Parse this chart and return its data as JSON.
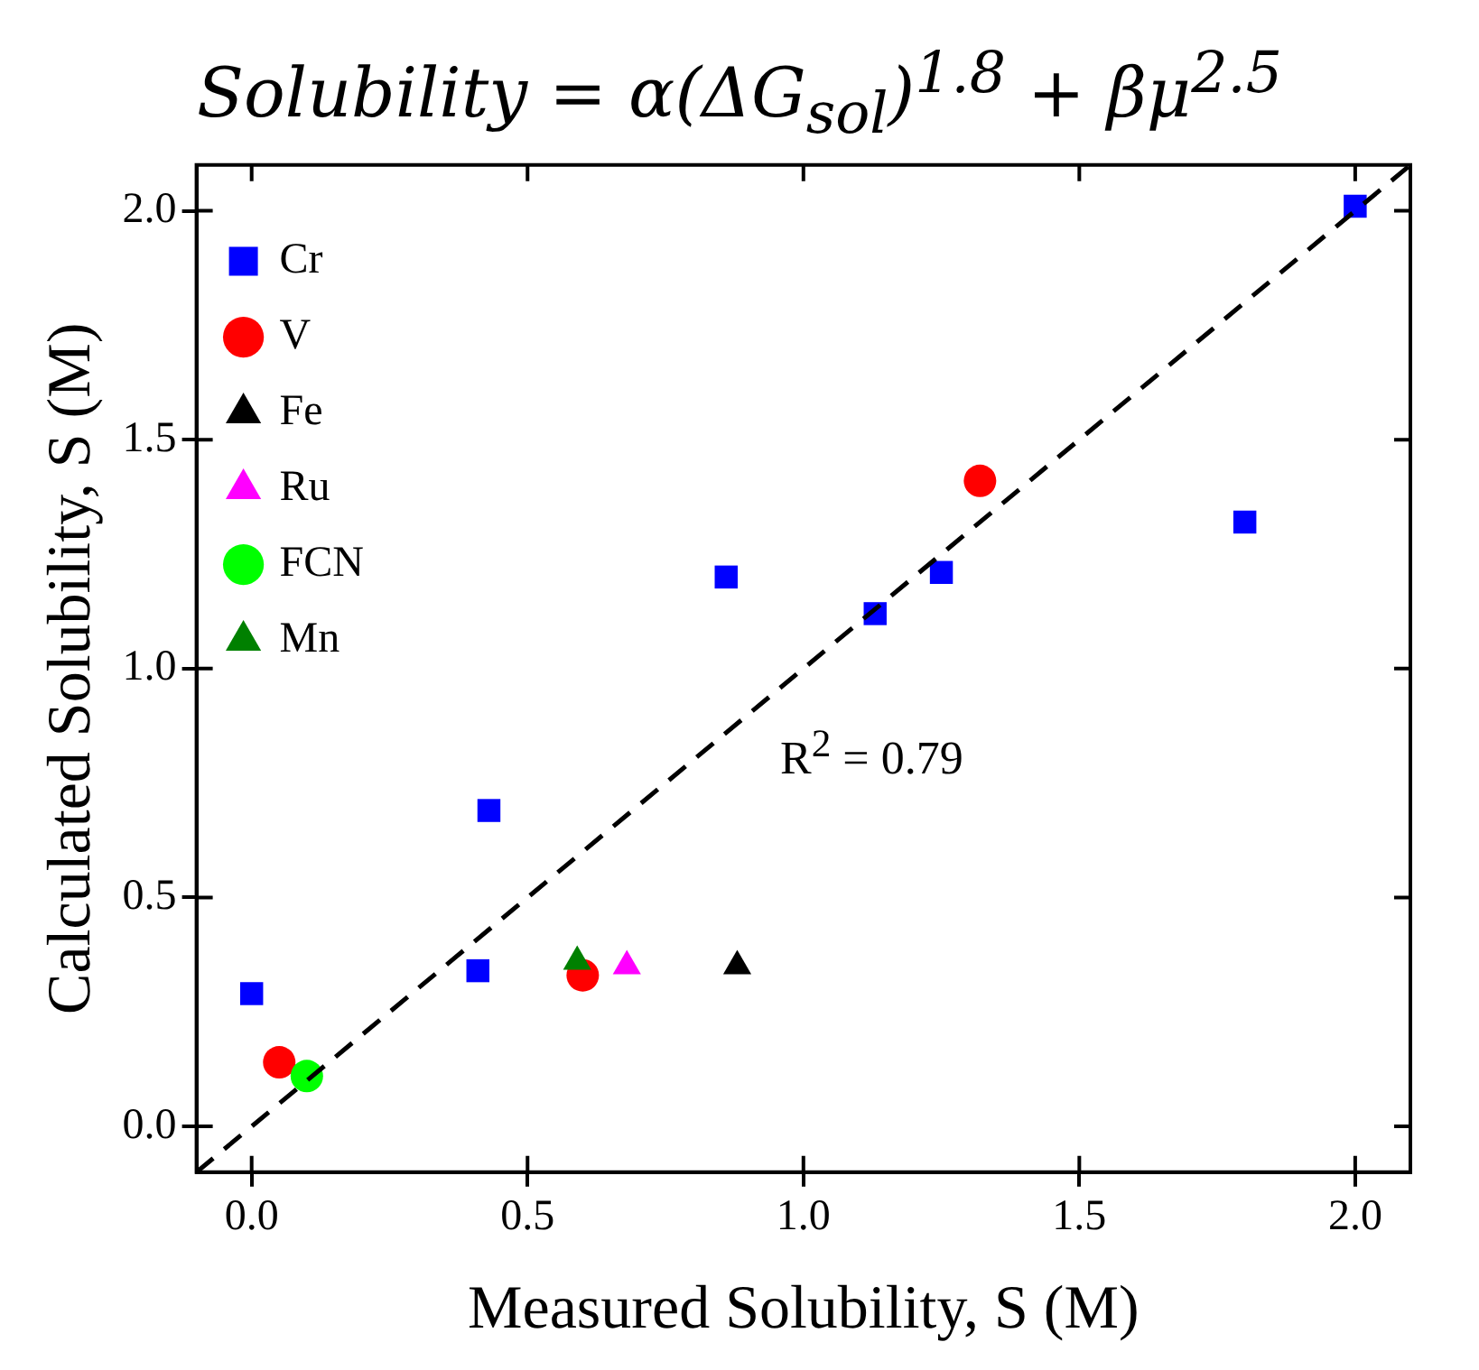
{
  "chart_data": {
    "type": "scatter",
    "title": "Solubility = α(ΔG$_{sol}$)$^{1.8}$ + βμ$^{2.5}$",
    "xlabel": "Measured Solubility, S (M)",
    "ylabel": "Calculated Solubility, S (M)",
    "xlim": [
      -0.1,
      2.1
    ],
    "ylim": [
      -0.1,
      2.1
    ],
    "xticks": [
      {
        "value": 0,
        "label": "0.0"
      },
      {
        "value": 0.5,
        "label": "0.5"
      },
      {
        "value": 1,
        "label": "1.0"
      },
      {
        "value": 1.5,
        "label": "1.5"
      },
      {
        "value": 2,
        "label": "2.0"
      }
    ],
    "yticks": [
      {
        "value": 0,
        "label": "0.0"
      },
      {
        "value": 0.5,
        "label": "0.5"
      },
      {
        "value": 1,
        "label": "1.0"
      },
      {
        "value": 1.5,
        "label": "1.5"
      },
      {
        "value": 2,
        "label": "2.0"
      }
    ],
    "grid": false,
    "legend": "top left",
    "annotations": [
      "R$^{2}$ = 0.79"
    ],
    "series": [
      {
        "name": "Cr",
        "color": "#0000ff",
        "marker": "square",
        "x": [
          0.0,
          0.43,
          0.41,
          0.86,
          1.13,
          1.25,
          1.8,
          2.0
        ],
        "values": [
          0.29,
          0.69,
          0.34,
          1.2,
          1.12,
          1.21,
          1.32,
          2.01
        ]
      },
      {
        "name": "V",
        "color": "#ff0000",
        "marker": "circle",
        "x": [
          0.05,
          0.6,
          1.32
        ],
        "values": [
          0.14,
          0.33,
          1.41
        ]
      },
      {
        "name": "Fe",
        "color": "#000000",
        "marker": "triangle",
        "x": [
          0.88
        ],
        "values": [
          0.35
        ]
      },
      {
        "name": "Ru",
        "color": "#ff00ff",
        "marker": "triangle",
        "x": [
          0.68
        ],
        "values": [
          0.35
        ]
      },
      {
        "name": "FCN",
        "color": "#00ff00",
        "marker": "circle",
        "x": [
          0.1
        ],
        "values": [
          0.11
        ]
      },
      {
        "name": "Mn",
        "color": "#008000",
        "marker": "triangle",
        "x": [
          0.59
        ],
        "values": [
          0.36
        ]
      },
      {
        "type": "line",
        "color": "#000000",
        "line_style": "dashed",
        "marker": "none",
        "x": [
          -0.1,
          2.1
        ],
        "values": [
          -0.1,
          2.1
        ]
      }
    ]
  }
}
